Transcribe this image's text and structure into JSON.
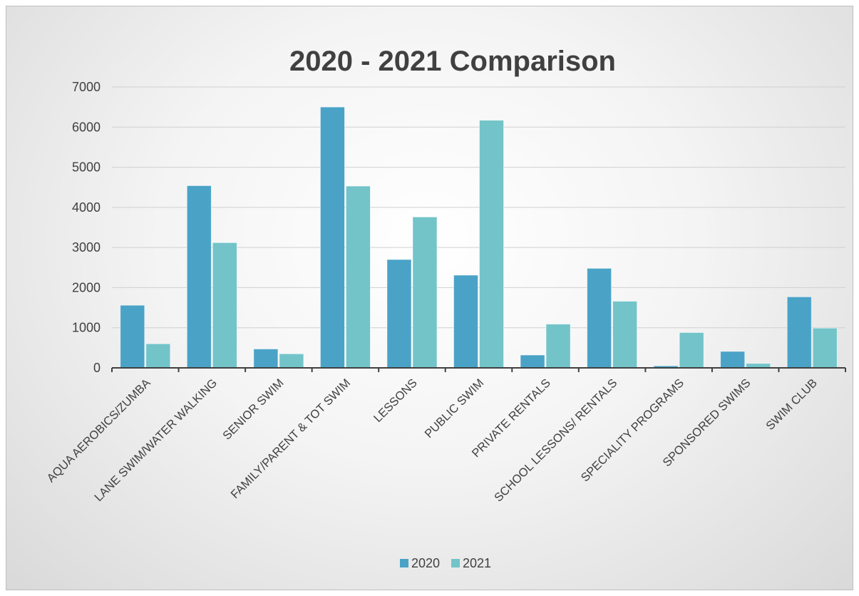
{
  "chart_data": {
    "type": "bar",
    "title": "2020 - 2021 Comparison",
    "xlabel": "",
    "ylabel": "",
    "ylim": [
      0,
      7000
    ],
    "yticks": [
      0,
      1000,
      2000,
      3000,
      4000,
      5000,
      6000,
      7000
    ],
    "grid": true,
    "legend_position": "bottom",
    "categories": [
      "AQUA AEROBICS/ZUMBA",
      "LANE SWIM/WATER WALKING",
      "SENIOR SWIM",
      "FAMILY/PARENT & TOT SWIM",
      "LESSONS",
      "PUBLIC SWIM",
      "PRIVATE RENTALS",
      "SCHOOL LESSONS/ RENTALS",
      "SPECIALITY PROGRAMS",
      "SPONSORED SWIMS",
      "SWIM CLUB"
    ],
    "series": [
      {
        "name": "2020",
        "color": "#4aa3c7",
        "values": [
          1560,
          4540,
          470,
          6500,
          2700,
          2310,
          320,
          2480,
          50,
          410,
          1770
        ]
      },
      {
        "name": "2021",
        "color": "#72c4c9",
        "values": [
          600,
          3120,
          350,
          4530,
          3760,
          6170,
          1090,
          1660,
          880,
          110,
          990
        ]
      }
    ]
  }
}
